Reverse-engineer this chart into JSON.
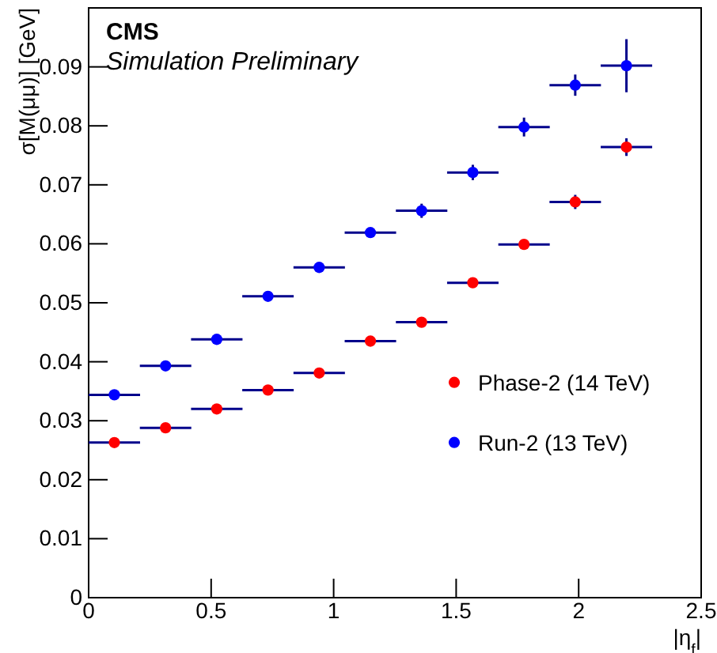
{
  "chart_data": {
    "type": "scatter",
    "xlabel": "|η$_{f}$|",
    "ylabel": "σ[M(μμ)] [GeV]",
    "annotations": [
      "CMS",
      "Simulation Preliminary"
    ],
    "xlim": [
      0,
      2.5
    ],
    "xticks": [
      0,
      0.5,
      1,
      1.5,
      2,
      2.5
    ],
    "ylim": [
      0,
      0.1
    ],
    "yticks": [
      0,
      0.01,
      0.02,
      0.03,
      0.04,
      0.05,
      0.06,
      0.07,
      0.08,
      0.09
    ],
    "legend": "right",
    "marker": "circle",
    "grid": false,
    "series": [
      {
        "name": "Phase-2 (14 TeV)",
        "color": "#ff0000",
        "x": [
          0.105,
          0.314,
          0.523,
          0.732,
          0.941,
          1.15,
          1.359,
          1.568,
          1.777,
          1.986,
          2.195
        ],
        "values": [
          0.0263,
          0.0288,
          0.032,
          0.0352,
          0.0381,
          0.0435,
          0.0467,
          0.0534,
          0.0599,
          0.0671,
          0.0764
        ],
        "xerrors": [
          0.105,
          0.105,
          0.105,
          0.105,
          0.105,
          0.105,
          0.105,
          0.105,
          0.105,
          0.105,
          0.105
        ],
        "errors": [
          null,
          null,
          null,
          null,
          null,
          null,
          null,
          null,
          null,
          0.0012,
          0.0015
        ]
      },
      {
        "name": "Run-2 (13 TeV)",
        "color": "#0000ff",
        "x": [
          0.105,
          0.314,
          0.523,
          0.732,
          0.941,
          1.15,
          1.359,
          1.568,
          1.777,
          1.986,
          2.195
        ],
        "values": [
          0.0344,
          0.0393,
          0.0438,
          0.0511,
          0.056,
          0.0619,
          0.0656,
          0.0721,
          0.0798,
          0.0869,
          0.0902
        ],
        "xerrors": [
          0.105,
          0.105,
          0.105,
          0.105,
          0.105,
          0.105,
          0.105,
          0.105,
          0.105,
          0.105,
          0.105
        ],
        "errors": [
          null,
          null,
          null,
          null,
          null,
          null,
          0.0012,
          0.0013,
          0.0016,
          0.0018,
          0.0045
        ]
      }
    ]
  }
}
